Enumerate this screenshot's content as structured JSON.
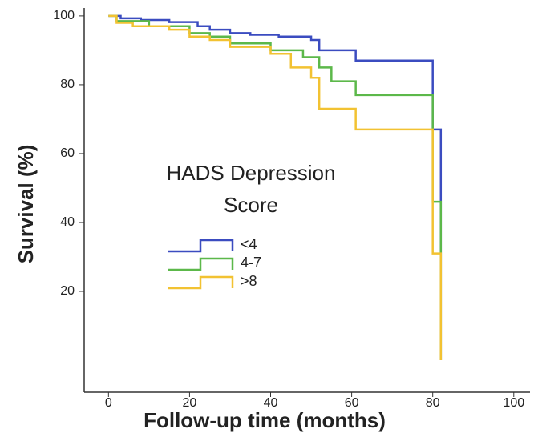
{
  "chart_data": {
    "type": "step",
    "x_label": "Follow-up time (months)",
    "y_label": "Survival (%)",
    "legend_title": [
      "HADS Depression",
      "Score"
    ],
    "xlim": [
      -6,
      104
    ],
    "ylim": [
      -9.3,
      102.3
    ],
    "xticks": [
      0,
      20,
      40,
      60,
      80,
      100
    ],
    "yticks": [
      20,
      40,
      60,
      80,
      100
    ],
    "series": [
      {
        "name": "<4",
        "color": "#3b4cc0",
        "x": [
          0,
          3,
          8,
          15,
          22,
          25,
          30,
          35,
          42,
          50,
          52,
          61,
          80,
          82
        ],
        "values": [
          100,
          99.3,
          98.8,
          98.2,
          97,
          96,
          95,
          94.5,
          94,
          93,
          90,
          87,
          67,
          0
        ]
      },
      {
        "name": "4-7",
        "color": "#5cb84a",
        "x": [
          0,
          2,
          10,
          20,
          25,
          30,
          40,
          48,
          52,
          55,
          61,
          80,
          82
        ],
        "values": [
          100,
          98.5,
          97,
          95,
          94,
          92,
          90,
          88,
          85,
          81,
          77,
          46,
          0
        ]
      },
      {
        "name": ">8",
        "color": "#f2c232",
        "x": [
          0,
          2,
          6,
          15,
          20,
          25,
          30,
          40,
          45,
          50,
          52,
          61,
          80,
          82
        ],
        "values": [
          100,
          98,
          97,
          96,
          94,
          93,
          91,
          89,
          85,
          82,
          73,
          67,
          31,
          0
        ]
      }
    ]
  }
}
